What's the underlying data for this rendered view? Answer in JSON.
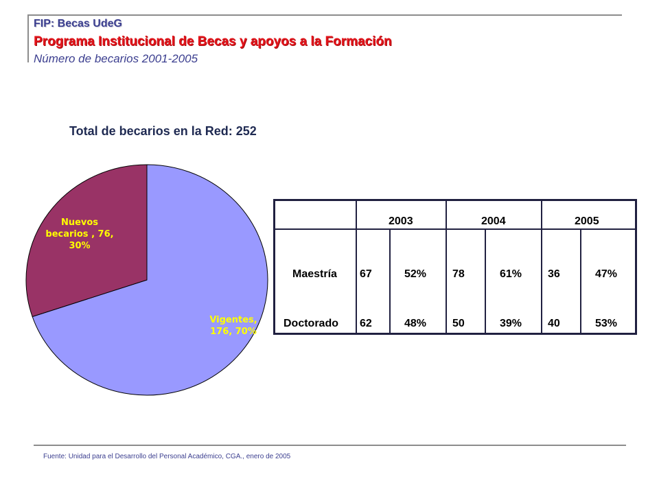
{
  "header": {
    "label": "FIP: Becas UdeG",
    "title": "Programa Institucional de Becas y apoyos a la Formación",
    "subtitle": "Número de becarios 2001-2005"
  },
  "chart_data": {
    "type": "pie",
    "title": "Total de becarios en la Red: 252",
    "slices": [
      {
        "label_lines": [
          "Vigentes,",
          "176, 70%"
        ],
        "value": 176,
        "percent": 70,
        "color": "#9999ff"
      },
      {
        "label_lines": [
          "Nuevos",
          "becarios , 76,",
          "30%"
        ],
        "value": 76,
        "percent": 30,
        "color": "#993366"
      }
    ]
  },
  "table": {
    "years": [
      "2003",
      "2004",
      "2005"
    ],
    "rows": [
      {
        "label": "Maestría",
        "values": [
          "67",
          "52%",
          "78",
          "61%",
          "36",
          "47%"
        ]
      },
      {
        "label": "Doctorado",
        "values": [
          "62",
          "48%",
          "50",
          "39%",
          "40",
          "53%"
        ]
      }
    ]
  },
  "footnote": "Fuente: Unidad para el Desarrollo del Personal Académico, CGA., enero de 2005"
}
